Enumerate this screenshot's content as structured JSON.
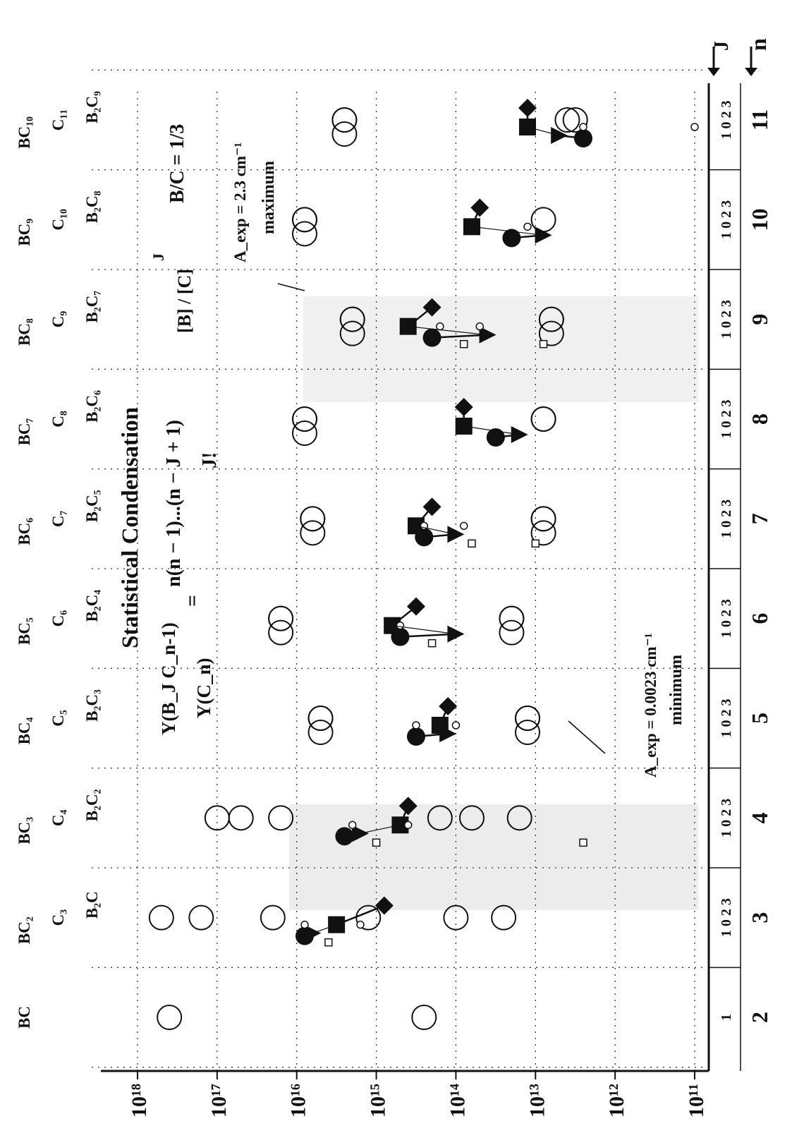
{
  "chart_data": {
    "type": "scatter",
    "orientation": "rotated-90",
    "title": "Statistical Condensation",
    "formula": {
      "lhs_num": "Y(B_J C_n-1)",
      "lhs_den": "Y(C_n)",
      "equals": "=",
      "rhs_num": "n(n − 1)...(n − J + 1)",
      "rhs_den": "J!",
      "ratio": "[B] / [C]",
      "power": "J"
    },
    "ratio_label": "B/C = 1/3",
    "annotations": {
      "max_value": "A_exp = 2.3 cm⁻¹",
      "max_label": "maximum",
      "min_value": "A_exp = 0.0023 cm⁻¹",
      "min_label": "minimum"
    },
    "arrow_labels": {
      "j": "J",
      "n": "n"
    },
    "y_axis": {
      "scale": "log",
      "ylim": [
        100000000000.0,
        1e+18
      ],
      "tick_labels": [
        "10¹¹",
        "10¹²",
        "10¹³",
        "10¹⁴",
        "10¹⁵",
        "10¹⁶",
        "10¹⁷",
        "10¹⁸"
      ],
      "tick_exponents": [
        11,
        12,
        13,
        14,
        15,
        16,
        17,
        18
      ]
    },
    "x_axis": {
      "n_values": [
        "2",
        "3",
        "4",
        "5",
        "6",
        "7",
        "8",
        "9",
        "10",
        "11"
      ],
      "j_labels": [
        "1",
        "1 0 2 3",
        "1 0 2 3",
        "1 0 2 3",
        "1 0 2 3",
        "1 0 2 3",
        "1 0 2 3",
        "1 0 2 3",
        "1 0 2 3",
        "1 0 2 3"
      ]
    },
    "species": [
      {
        "n": 2,
        "labels": [
          "BC"
        ]
      },
      {
        "n": 3,
        "labels": [
          "BC₂",
          "C₃",
          "B₂C"
        ]
      },
      {
        "n": 4,
        "labels": [
          "BC₃",
          "C₄",
          "B₂C₂"
        ]
      },
      {
        "n": 5,
        "labels": [
          "BC₄",
          "C₅",
          "B₂C₃"
        ]
      },
      {
        "n": 6,
        "labels": [
          "BC₅",
          "C₆",
          "B₂C₄"
        ]
      },
      {
        "n": 7,
        "labels": [
          "BC₆",
          "C₇",
          "B₂C₅"
        ]
      },
      {
        "n": 8,
        "labels": [
          "BC₇",
          "C₈",
          "B₂C₆"
        ]
      },
      {
        "n": 9,
        "labels": [
          "BC₈",
          "C₉",
          "B₂C₇"
        ]
      },
      {
        "n": 10,
        "labels": [
          "BC₉",
          "C₁₀",
          "B₂C₈"
        ]
      },
      {
        "n": 11,
        "labels": [
          "BC₁₀",
          "C₁₁",
          "B₂C₉"
        ]
      }
    ],
    "series": [
      {
        "marker": "large-open-circle",
        "points": [
          [
            2,
            17.6
          ],
          [
            2,
            14.4
          ],
          [
            3,
            17.2
          ],
          [
            3,
            16.3
          ],
          [
            3,
            15.1
          ],
          [
            3,
            14.0
          ],
          [
            3,
            13.4
          ],
          [
            3,
            17.7
          ],
          [
            4,
            17.0
          ],
          [
            4,
            16.7
          ],
          [
            4,
            16.2
          ],
          [
            4,
            14.2
          ],
          [
            4,
            13.8
          ],
          [
            4,
            13.2
          ],
          [
            5,
            15.7
          ],
          [
            5,
            15.7
          ],
          [
            5,
            15.7
          ],
          [
            5,
            13.1
          ],
          [
            5,
            13.1
          ],
          [
            5,
            13.1
          ],
          [
            6,
            16.2
          ],
          [
            6,
            16.2
          ],
          [
            6,
            16.2
          ],
          [
            6,
            13.3
          ],
          [
            6,
            13.3
          ],
          [
            6,
            13.3
          ],
          [
            7,
            15.8
          ],
          [
            7,
            15.8
          ],
          [
            7,
            15.8
          ],
          [
            7,
            12.9
          ],
          [
            7,
            12.9
          ],
          [
            7,
            12.9
          ],
          [
            8,
            15.9
          ],
          [
            8,
            15.9
          ],
          [
            8,
            15.9
          ],
          [
            8,
            12.9
          ],
          [
            8,
            12.9
          ],
          [
            9,
            15.3
          ],
          [
            9,
            15.3
          ],
          [
            9,
            15.3
          ],
          [
            9,
            12.8
          ],
          [
            9,
            12.8
          ],
          [
            9,
            12.8
          ],
          [
            10,
            15.9
          ],
          [
            10,
            15.9
          ],
          [
            10,
            15.9
          ],
          [
            10,
            12.9
          ],
          [
            11,
            15.4
          ],
          [
            11,
            15.4
          ],
          [
            11,
            15.4
          ],
          [
            11,
            12.6
          ],
          [
            11,
            12.5
          ]
        ]
      },
      {
        "marker": "filled-circle",
        "points": [
          [
            3,
            15.9
          ],
          [
            4,
            15.4
          ],
          [
            5,
            14.5
          ],
          [
            6,
            14.7
          ],
          [
            7,
            14.4
          ],
          [
            8,
            13.5
          ],
          [
            9,
            14.3
          ],
          [
            10,
            13.3
          ],
          [
            11,
            12.4
          ]
        ]
      },
      {
        "marker": "filled-triangle",
        "points": [
          [
            3,
            15.8
          ],
          [
            4,
            15.2
          ],
          [
            5,
            14.1
          ],
          [
            6,
            14.0
          ],
          [
            7,
            14.0
          ],
          [
            8,
            13.2
          ],
          [
            9,
            13.6
          ],
          [
            10,
            12.9
          ],
          [
            11,
            12.7
          ]
        ]
      },
      {
        "marker": "filled-square",
        "points": [
          [
            3,
            15.5
          ],
          [
            4,
            14.7
          ],
          [
            5,
            14.2
          ],
          [
            6,
            14.8
          ],
          [
            7,
            14.5
          ],
          [
            8,
            13.9
          ],
          [
            9,
            14.6
          ],
          [
            10,
            13.8
          ],
          [
            11,
            13.1
          ]
        ]
      },
      {
        "marker": "filled-diamond",
        "points": [
          [
            3,
            14.9
          ],
          [
            4,
            14.6
          ],
          [
            5,
            14.1
          ],
          [
            6,
            14.5
          ],
          [
            7,
            14.3
          ],
          [
            8,
            13.9
          ],
          [
            9,
            14.3
          ],
          [
            10,
            13.7
          ],
          [
            11,
            13.1
          ]
        ]
      },
      {
        "marker": "small-open-circle",
        "points": [
          [
            3,
            15.9
          ],
          [
            3,
            15.2
          ],
          [
            4,
            15.3
          ],
          [
            4,
            14.6
          ],
          [
            5,
            14.5
          ],
          [
            5,
            14.0
          ],
          [
            6,
            14.7
          ],
          [
            7,
            14.4
          ],
          [
            7,
            13.9
          ],
          [
            9,
            14.2
          ],
          [
            9,
            13.7
          ],
          [
            10,
            13.1
          ],
          [
            11,
            12.4
          ],
          [
            11,
            11.0
          ]
        ]
      },
      {
        "marker": "small-open-square",
        "points": [
          [
            3,
            15.6
          ],
          [
            4,
            15.0
          ],
          [
            4,
            12.4
          ],
          [
            6,
            14.3
          ],
          [
            7,
            13.8
          ],
          [
            7,
            13.0
          ],
          [
            9,
            13.9
          ],
          [
            9,
            12.9
          ]
        ]
      }
    ]
  }
}
